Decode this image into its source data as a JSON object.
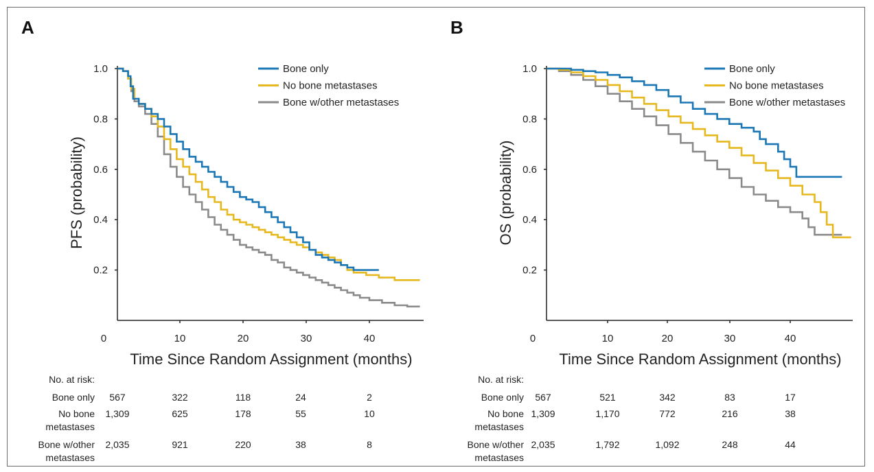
{
  "colors": {
    "bone_only": "#1a76b4",
    "no_bone": "#e6b81e",
    "bone_other": "#8a8a8a"
  },
  "risk_table_header": "No. at risk:",
  "chart_data": [
    {
      "panel": "A",
      "type": "line",
      "step": true,
      "xlabel": "Time Since Random Assignment (months)",
      "ylabel": "PFS (probability)",
      "xlim": [
        0,
        48
      ],
      "ylim": [
        0,
        1.0
      ],
      "x_ticks": [
        "0",
        "10",
        "20",
        "30",
        "40"
      ],
      "y_ticks": [
        "1.0",
        "0.8",
        "0.6",
        "0.4",
        "0.2"
      ],
      "legend_position": "top-right",
      "series": [
        {
          "name": "Bone only",
          "color_key": "bone_only",
          "points": [
            [
              0,
              1.0
            ],
            [
              1,
              0.99
            ],
            [
              1.8,
              0.97
            ],
            [
              2.2,
              0.93
            ],
            [
              2.6,
              0.88
            ],
            [
              3.5,
              0.86
            ],
            [
              4.5,
              0.84
            ],
            [
              5.5,
              0.82
            ],
            [
              6.5,
              0.8
            ],
            [
              7.5,
              0.77
            ],
            [
              8.5,
              0.74
            ],
            [
              9.5,
              0.71
            ],
            [
              10.5,
              0.68
            ],
            [
              11.5,
              0.65
            ],
            [
              12.5,
              0.63
            ],
            [
              13.5,
              0.61
            ],
            [
              14.5,
              0.59
            ],
            [
              15.5,
              0.57
            ],
            [
              16.5,
              0.55
            ],
            [
              17.5,
              0.53
            ],
            [
              18.5,
              0.51
            ],
            [
              19.5,
              0.49
            ],
            [
              20.5,
              0.48
            ],
            [
              21.5,
              0.47
            ],
            [
              22.5,
              0.45
            ],
            [
              23.5,
              0.43
            ],
            [
              24.5,
              0.41
            ],
            [
              25.5,
              0.39
            ],
            [
              26.5,
              0.37
            ],
            [
              27.5,
              0.35
            ],
            [
              28.5,
              0.33
            ],
            [
              29.5,
              0.31
            ],
            [
              30.5,
              0.28
            ],
            [
              31.5,
              0.26
            ],
            [
              32.5,
              0.25
            ],
            [
              33.5,
              0.24
            ],
            [
              34.5,
              0.23
            ],
            [
              35.5,
              0.22
            ],
            [
              36.5,
              0.21
            ],
            [
              37.5,
              0.2
            ],
            [
              41.5,
              0.2
            ]
          ]
        },
        {
          "name": "No bone metastases",
          "color_key": "no_bone",
          "points": [
            [
              0,
              1.0
            ],
            [
              1,
              0.99
            ],
            [
              1.8,
              0.96
            ],
            [
              2.3,
              0.92
            ],
            [
              2.8,
              0.88
            ],
            [
              3.5,
              0.86
            ],
            [
              4.5,
              0.84
            ],
            [
              5.5,
              0.81
            ],
            [
              6.5,
              0.77
            ],
            [
              7.5,
              0.72
            ],
            [
              8.5,
              0.68
            ],
            [
              9.5,
              0.64
            ],
            [
              10.5,
              0.61
            ],
            [
              11.5,
              0.58
            ],
            [
              12.5,
              0.55
            ],
            [
              13.5,
              0.52
            ],
            [
              14.5,
              0.49
            ],
            [
              15.5,
              0.47
            ],
            [
              16.5,
              0.44
            ],
            [
              17.5,
              0.42
            ],
            [
              18.5,
              0.4
            ],
            [
              19.5,
              0.39
            ],
            [
              20.5,
              0.38
            ],
            [
              21.5,
              0.37
            ],
            [
              22.5,
              0.36
            ],
            [
              23.5,
              0.35
            ],
            [
              24.5,
              0.34
            ],
            [
              25.5,
              0.33
            ],
            [
              26.5,
              0.32
            ],
            [
              27.5,
              0.31
            ],
            [
              28.5,
              0.3
            ],
            [
              29.5,
              0.29
            ],
            [
              30.5,
              0.28
            ],
            [
              31.5,
              0.27
            ],
            [
              32.5,
              0.26
            ],
            [
              33.5,
              0.25
            ],
            [
              34.5,
              0.24
            ],
            [
              35.5,
              0.22
            ],
            [
              36.5,
              0.2
            ],
            [
              37.5,
              0.19
            ],
            [
              39.5,
              0.18
            ],
            [
              41.5,
              0.17
            ],
            [
              44,
              0.16
            ],
            [
              48,
              0.16
            ]
          ]
        },
        {
          "name": "Bone w/other metastases",
          "color_key": "bone_other",
          "points": [
            [
              0,
              1.0
            ],
            [
              1,
              0.99
            ],
            [
              1.8,
              0.96
            ],
            [
              2.3,
              0.91
            ],
            [
              2.8,
              0.87
            ],
            [
              3.5,
              0.85
            ],
            [
              4.5,
              0.82
            ],
            [
              5.5,
              0.78
            ],
            [
              6.5,
              0.73
            ],
            [
              7.5,
              0.66
            ],
            [
              8.5,
              0.61
            ],
            [
              9.5,
              0.57
            ],
            [
              10.5,
              0.53
            ],
            [
              11.5,
              0.5
            ],
            [
              12.5,
              0.47
            ],
            [
              13.5,
              0.44
            ],
            [
              14.5,
              0.41
            ],
            [
              15.5,
              0.38
            ],
            [
              16.5,
              0.36
            ],
            [
              17.5,
              0.34
            ],
            [
              18.5,
              0.32
            ],
            [
              19.5,
              0.3
            ],
            [
              20.5,
              0.29
            ],
            [
              21.5,
              0.28
            ],
            [
              22.5,
              0.27
            ],
            [
              23.5,
              0.26
            ],
            [
              24.5,
              0.24
            ],
            [
              25.5,
              0.23
            ],
            [
              26.5,
              0.21
            ],
            [
              27.5,
              0.2
            ],
            [
              28.5,
              0.19
            ],
            [
              29.5,
              0.18
            ],
            [
              30.5,
              0.17
            ],
            [
              31.5,
              0.16
            ],
            [
              32.5,
              0.15
            ],
            [
              33.5,
              0.14
            ],
            [
              34.5,
              0.13
            ],
            [
              35.5,
              0.12
            ],
            [
              36.5,
              0.11
            ],
            [
              37.5,
              0.1
            ],
            [
              38.5,
              0.09
            ],
            [
              40,
              0.08
            ],
            [
              42,
              0.07
            ],
            [
              44,
              0.06
            ],
            [
              46,
              0.055
            ],
            [
              48,
              0.055
            ]
          ]
        }
      ],
      "risk_table": {
        "columns": [
          "567",
          "322",
          "118",
          "24",
          "2"
        ],
        "rows": [
          {
            "label": "Bone only",
            "values": [
              "567",
              "322",
              "118",
              "24",
              "2"
            ]
          },
          {
            "label_line1": "No bone",
            "label_line2": "metastases",
            "values": [
              "1,309",
              "625",
              "178",
              "55",
              "10"
            ]
          },
          {
            "label_line1": "Bone w/other",
            "label_line2": "metastases",
            "values": [
              "2,035",
              "921",
              "220",
              "38",
              "8"
            ]
          }
        ]
      }
    },
    {
      "panel": "B",
      "type": "line",
      "step": true,
      "xlabel": "Time Since Random Assignment (months)",
      "ylabel": "OS (probability)",
      "xlim": [
        0,
        50
      ],
      "ylim": [
        0,
        1.0
      ],
      "x_ticks": [
        "0",
        "10",
        "20",
        "30",
        "40"
      ],
      "y_ticks": [
        "1.0",
        "0.8",
        "0.6",
        "0.4",
        "0.2"
      ],
      "legend_position": "top-right",
      "series": [
        {
          "name": "Bone only",
          "color_key": "bone_only",
          "points": [
            [
              0,
              1.0
            ],
            [
              2,
              1.0
            ],
            [
              4,
              0.995
            ],
            [
              6,
              0.99
            ],
            [
              8,
              0.985
            ],
            [
              10,
              0.975
            ],
            [
              12,
              0.965
            ],
            [
              14,
              0.95
            ],
            [
              16,
              0.935
            ],
            [
              18,
              0.915
            ],
            [
              20,
              0.89
            ],
            [
              22,
              0.865
            ],
            [
              24,
              0.84
            ],
            [
              26,
              0.82
            ],
            [
              28,
              0.8
            ],
            [
              30,
              0.78
            ],
            [
              32,
              0.765
            ],
            [
              34,
              0.75
            ],
            [
              35,
              0.72
            ],
            [
              36,
              0.7
            ],
            [
              38,
              0.67
            ],
            [
              39,
              0.64
            ],
            [
              40,
              0.61
            ],
            [
              41,
              0.57
            ],
            [
              48.5,
              0.57
            ]
          ]
        },
        {
          "name": "No bone metastases",
          "color_key": "no_bone",
          "points": [
            [
              0,
              1.0
            ],
            [
              2,
              0.995
            ],
            [
              4,
              0.985
            ],
            [
              6,
              0.97
            ],
            [
              8,
              0.955
            ],
            [
              10,
              0.935
            ],
            [
              12,
              0.91
            ],
            [
              14,
              0.885
            ],
            [
              16,
              0.86
            ],
            [
              18,
              0.835
            ],
            [
              20,
              0.81
            ],
            [
              22,
              0.785
            ],
            [
              24,
              0.76
            ],
            [
              26,
              0.735
            ],
            [
              28,
              0.71
            ],
            [
              30,
              0.685
            ],
            [
              32,
              0.655
            ],
            [
              34,
              0.625
            ],
            [
              36,
              0.595
            ],
            [
              38,
              0.565
            ],
            [
              40,
              0.535
            ],
            [
              42,
              0.5
            ],
            [
              44,
              0.47
            ],
            [
              45,
              0.43
            ],
            [
              46,
              0.38
            ],
            [
              47,
              0.33
            ],
            [
              50,
              0.33
            ]
          ]
        },
        {
          "name": "Bone w/other metastases",
          "color_key": "bone_other",
          "points": [
            [
              0,
              1.0
            ],
            [
              2,
              0.99
            ],
            [
              4,
              0.975
            ],
            [
              6,
              0.955
            ],
            [
              8,
              0.93
            ],
            [
              10,
              0.9
            ],
            [
              12,
              0.87
            ],
            [
              14,
              0.84
            ],
            [
              16,
              0.81
            ],
            [
              18,
              0.775
            ],
            [
              20,
              0.74
            ],
            [
              22,
              0.705
            ],
            [
              24,
              0.67
            ],
            [
              26,
              0.635
            ],
            [
              28,
              0.6
            ],
            [
              30,
              0.565
            ],
            [
              32,
              0.53
            ],
            [
              34,
              0.5
            ],
            [
              36,
              0.475
            ],
            [
              38,
              0.45
            ],
            [
              40,
              0.43
            ],
            [
              42,
              0.405
            ],
            [
              43,
              0.37
            ],
            [
              44,
              0.34
            ],
            [
              48.5,
              0.34
            ]
          ]
        }
      ],
      "risk_table": {
        "rows": [
          {
            "label": "Bone only",
            "values": [
              "567",
              "521",
              "342",
              "83",
              "17"
            ]
          },
          {
            "label_line1": "No bone",
            "label_line2": "metastases",
            "values": [
              "1,309",
              "1,170",
              "772",
              "216",
              "38"
            ]
          },
          {
            "label_line1": "Bone w/other",
            "label_line2": "metastases",
            "values": [
              "2,035",
              "1,792",
              "1,092",
              "248",
              "44"
            ]
          }
        ]
      }
    }
  ]
}
